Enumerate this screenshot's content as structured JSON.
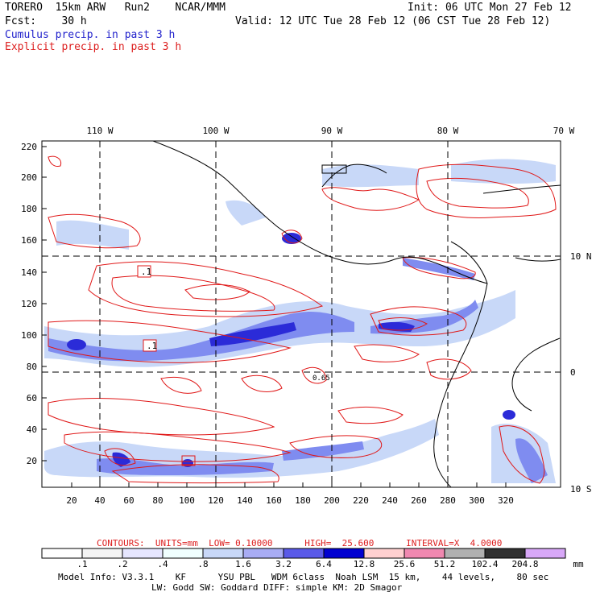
{
  "header": {
    "line1_left": "TORERO  15km ARW   Run2    NCAR/MMM",
    "line1_right": "Init: 06 UTC Mon 27 Feb 12",
    "line2_left": "Fcst:    30 h",
    "line2_right": "Valid: 12 UTC Tue 28 Feb 12 (06 CST Tue 28 Feb 12)",
    "legend_cumulus": "Cumulus precip. in past 3 h",
    "legend_explicit": "Explicit precip. in past 3 h"
  },
  "map": {
    "lon_labels": [
      "110 W",
      "100 W",
      "90 W",
      "80 W",
      "70 W"
    ],
    "lat_labels": [
      "10 N",
      "0",
      "10 S"
    ],
    "y_ticks": [
      "220",
      "200",
      "180",
      "160",
      "140",
      "120",
      "100",
      "80",
      "60",
      "40",
      "20"
    ],
    "x_ticks": [
      "20",
      "40",
      "60",
      "80",
      "100",
      "120",
      "140",
      "160",
      "180",
      "200",
      "220",
      "240",
      "260",
      "280",
      "300",
      "320"
    ],
    "box_labels": [
      ".1",
      ".1"
    ],
    "inline_label": "0.65",
    "colors": {
      "contour": "#e01818",
      "precip_light": "#c8d8f8",
      "precip_mid": "#7f8cf0",
      "precip_dark": "#2b2bd8",
      "coast": "#000000"
    }
  },
  "contours_info": {
    "title": "CONTOURS:  UNITS=mm  LOW= 0.10000      HIGH=  25.600      INTERVAL=X  4.0000"
  },
  "colorbar": {
    "labels": [
      ".1",
      ".2",
      ".4",
      ".8",
      "1.6",
      "3.2",
      "6.4",
      "12.8",
      "25.6",
      "51.2",
      "102.4",
      "204.8"
    ],
    "colors": [
      "#ffffff",
      "#f4f4f4",
      "#e6e6ff",
      "#f0ffff",
      "#e0f6ff",
      "#c8d8f8",
      "#a8acf4",
      "#7f8cf0",
      "#3535e0",
      "#0000c0",
      "#ffc8c8",
      "#f088b0",
      "#b8b8b8",
      "#707070",
      "#303030",
      "#d8a8f8"
    ],
    "unit": "mm"
  },
  "footer": {
    "line1": "Model Info: V3.3.1    KF      YSU PBL   WDM 6class  Noah LSM  15 km,    44 levels,    80 sec",
    "line2": "LW: Godd SW: Goddard DIFF: simple KM: 2D Smagor"
  }
}
